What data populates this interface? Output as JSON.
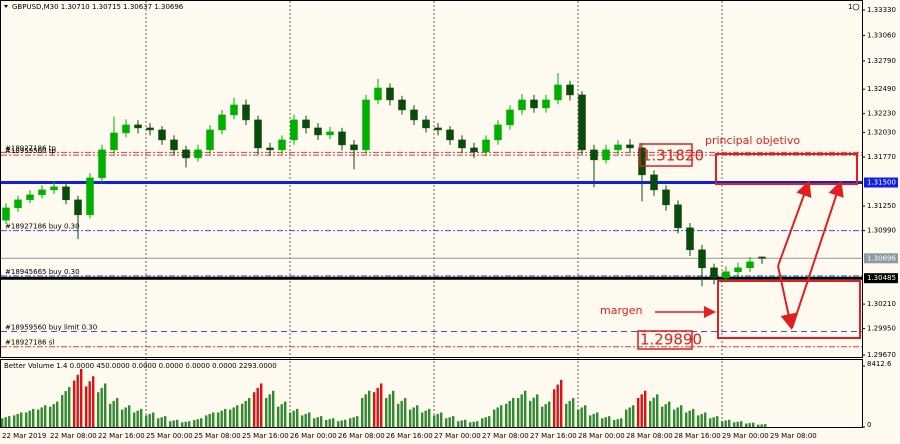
{
  "chart_data": {
    "type": "candlestick",
    "title": "GBPUSD,M30 1.30710 1.30715 1.30637 1.30696",
    "window_number": "1",
    "ylim": [
      1.29649,
      1.33383
    ],
    "yticks": [
      {
        "value": 1.3333,
        "label": "1.33330"
      },
      {
        "value": 1.3306,
        "label": "1.33060"
      },
      {
        "value": 1.3279,
        "label": "1.32790"
      },
      {
        "value": 1.3249,
        "label": "1.32490"
      },
      {
        "value": 1.3223,
        "label": "1.32230"
      },
      {
        "value": 1.3203,
        "label": "1.32030"
      },
      {
        "value": 1.3177,
        "label": "1.31770"
      },
      {
        "value": 1.3125,
        "label": "1.31250"
      },
      {
        "value": 1.3099,
        "label": "1.30990"
      },
      {
        "value": 1.3021,
        "label": "1.30210"
      },
      {
        "value": 1.2995,
        "label": "1.29950"
      },
      {
        "value": 1.2967,
        "label": "1.29670"
      }
    ],
    "bull_color": "#00b000",
    "bear_color": "#0a4a0a",
    "open": [
      1.311,
      1.31231,
      1.31316,
      1.31369,
      1.31422,
      1.31454,
      1.31316,
      1.31157,
      1.31549,
      1.31846,
      1.32026,
      1.32111,
      1.32079,
      1.32058,
      1.31952,
      1.31846,
      1.31761,
      1.31846,
      1.32058,
      1.32217,
      1.32323,
      1.32164,
      1.31867,
      1.31846,
      1.31952,
      1.32164,
      1.32079,
      1.32005,
      1.32037,
      1.31899,
      1.31846,
      1.32376,
      1.32503,
      1.32376,
      1.3227,
      1.32164,
      1.32079,
      1.32058,
      1.31952,
      1.31867,
      1.31825,
      1.31952,
      1.32111,
      1.3227,
      1.32376,
      1.32291,
      1.32376,
      1.32535,
      1.32429,
      1.31846,
      1.3174,
      1.31846,
      1.31899,
      1.31867,
      1.31581,
      1.31422,
      1.31263,
      1.31019,
      1.30786,
      1.30595,
      1.30489,
      1.30553,
      1.30595,
      1.3071
    ],
    "high": [
      1.3128,
      1.3136,
      1.3142,
      1.3147,
      1.3151,
      1.315,
      1.3136,
      1.316,
      1.319,
      1.322,
      1.3217,
      1.3216,
      1.3213,
      1.321,
      1.32,
      1.3189,
      1.319,
      1.3211,
      1.3227,
      1.324,
      1.3238,
      1.3221,
      1.3192,
      1.32,
      1.3222,
      1.3221,
      1.3213,
      1.3209,
      1.3208,
      1.3195,
      1.3243,
      1.326,
      1.3255,
      1.3242,
      1.3232,
      1.3221,
      1.3213,
      1.321,
      1.32,
      1.3192,
      1.32,
      1.3216,
      1.3232,
      1.3244,
      1.3243,
      1.3243,
      1.3266,
      1.3258,
      1.3247,
      1.319,
      1.319,
      1.3195,
      1.3196,
      1.3192,
      1.3163,
      1.3147,
      1.3131,
      1.3107,
      1.3084,
      1.3064,
      1.3061,
      1.3065,
      1.3071,
      1.30715
    ],
    "low": [
      1.3106,
      1.3119,
      1.3128,
      1.3133,
      1.3138,
      1.3127,
      1.309,
      1.3112,
      1.315,
      1.318,
      1.3198,
      1.3202,
      1.32,
      1.319,
      1.3179,
      1.3166,
      1.3172,
      1.318,
      1.3201,
      1.3217,
      1.3211,
      1.318,
      1.3178,
      1.318,
      1.319,
      1.3202,
      1.3195,
      1.3196,
      1.3184,
      1.3164,
      1.318,
      1.3233,
      1.3232,
      1.3222,
      1.3211,
      1.3203,
      1.32,
      1.319,
      1.3181,
      1.3176,
      1.3178,
      1.319,
      1.3206,
      1.3222,
      1.3224,
      1.3224,
      1.3233,
      1.3237,
      1.318,
      1.3145,
      1.317,
      1.318,
      1.3182,
      1.313,
      1.3136,
      1.312,
      1.3096,
      1.3072,
      1.304,
      1.3042,
      1.3044,
      1.305,
      1.3055,
      1.30637
    ],
    "close": [
      1.31231,
      1.31316,
      1.31369,
      1.31422,
      1.31454,
      1.31316,
      1.31157,
      1.31549,
      1.31846,
      1.32026,
      1.32111,
      1.32079,
      1.32058,
      1.31952,
      1.31846,
      1.31761,
      1.31846,
      1.32058,
      1.32217,
      1.32323,
      1.32164,
      1.31867,
      1.31846,
      1.31952,
      1.32164,
      1.32079,
      1.32005,
      1.32037,
      1.31899,
      1.31846,
      1.32376,
      1.32503,
      1.32376,
      1.3227,
      1.32164,
      1.32079,
      1.32058,
      1.31952,
      1.31867,
      1.31825,
      1.31952,
      1.32111,
      1.3227,
      1.32376,
      1.32291,
      1.32376,
      1.32535,
      1.32429,
      1.31846,
      1.3174,
      1.31846,
      1.31899,
      1.31867,
      1.31581,
      1.31422,
      1.31263,
      1.31019,
      1.30786,
      1.30595,
      1.30489,
      1.30553,
      1.30595,
      1.30659,
      1.30696
    ],
    "time_labels": [
      "22 Mar 2019",
      "22 Mar 08:00",
      "22 Mar 16:00",
      "25 Mar 00:00",
      "25 Mar 08:00",
      "25 Mar 16:00",
      "26 Mar 00:00",
      "26 Mar 08:00",
      "26 Mar 16:00",
      "27 Mar 00:00",
      "27 Mar 08:00",
      "27 Mar 16:00",
      "28 Mar 00:00",
      "28 Mar 08:00",
      "28 Mar 16:00",
      "29 Mar 00:00",
      "29 Mar 08:00"
    ],
    "day_separators": [
      3,
      6,
      9,
      12,
      15
    ],
    "orders": [
      {
        "label": "#18927186 tp",
        "price": 1.3182,
        "color": "#d04040",
        "style": "dashdot"
      },
      {
        "label": "#18959560 tp",
        "price": 1.3179,
        "color": "#d04040",
        "style": "dashdot"
      },
      {
        "label": "#18927186 buy 0.30",
        "price": 1.3099,
        "color": "#4050e0",
        "style": "dashdot"
      },
      {
        "label": "#18945665 buy 0.30",
        "price": 1.3051,
        "color": "#4050e0",
        "style": "dashdot"
      },
      {
        "label": "#18959560 buy limit 0.30",
        "price": 1.2992,
        "color": "#4050e0",
        "style": "dash"
      },
      {
        "label": "#18927186 sl",
        "price": 1.29758,
        "color": "#d04040",
        "style": "dashdot"
      }
    ],
    "levels": [
      {
        "value": 1.315,
        "label": "1.31500",
        "color": "#1020e0",
        "width": 3
      },
      {
        "value": 1.30696,
        "label": "1.30696",
        "color": "#8a9aa0",
        "width": 1
      },
      {
        "value": 1.30485,
        "label": "1.30485",
        "color": "#000000",
        "width": 3
      }
    ],
    "annotations": {
      "target_price": "1.31820",
      "target_text": "principal objetivo",
      "stop_price": "1.29890",
      "margin_text": "margen"
    },
    "volume": {
      "title": "Better Volume 1.4 0.0000 450.0000 0.0000 0.0000 0.0000 0.0000 2293.0000",
      "ylim": [
        0,
        8412.6
      ],
      "yticks": [
        {
          "value": 8412.6,
          "label": "8412.6"
        },
        0
      ],
      "bar_color": "#2e8b2e",
      "climax_color": "#e01010",
      "climax_bars": [
        6,
        7,
        21,
        31,
        46,
        53
      ],
      "values": [
        1500,
        2000,
        2500,
        3000,
        3500,
        5500,
        8000,
        7000,
        6000,
        4000,
        3000,
        2500,
        2000,
        1500,
        1000,
        800,
        1200,
        2000,
        2500,
        3000,
        4000,
        6000,
        5000,
        3500,
        2500,
        2000,
        1500,
        1200,
        1000,
        1500,
        5000,
        6000,
        5000,
        4000,
        3000,
        2500,
        2000,
        1500,
        1000,
        800,
        1500,
        3000,
        4000,
        5000,
        4500,
        3500,
        6500,
        4000,
        3000,
        2000,
        1500,
        1200,
        3000,
        5000,
        4500,
        3500,
        3000,
        2500,
        2000,
        1500,
        1000,
        800,
        600,
        400
      ]
    }
  }
}
